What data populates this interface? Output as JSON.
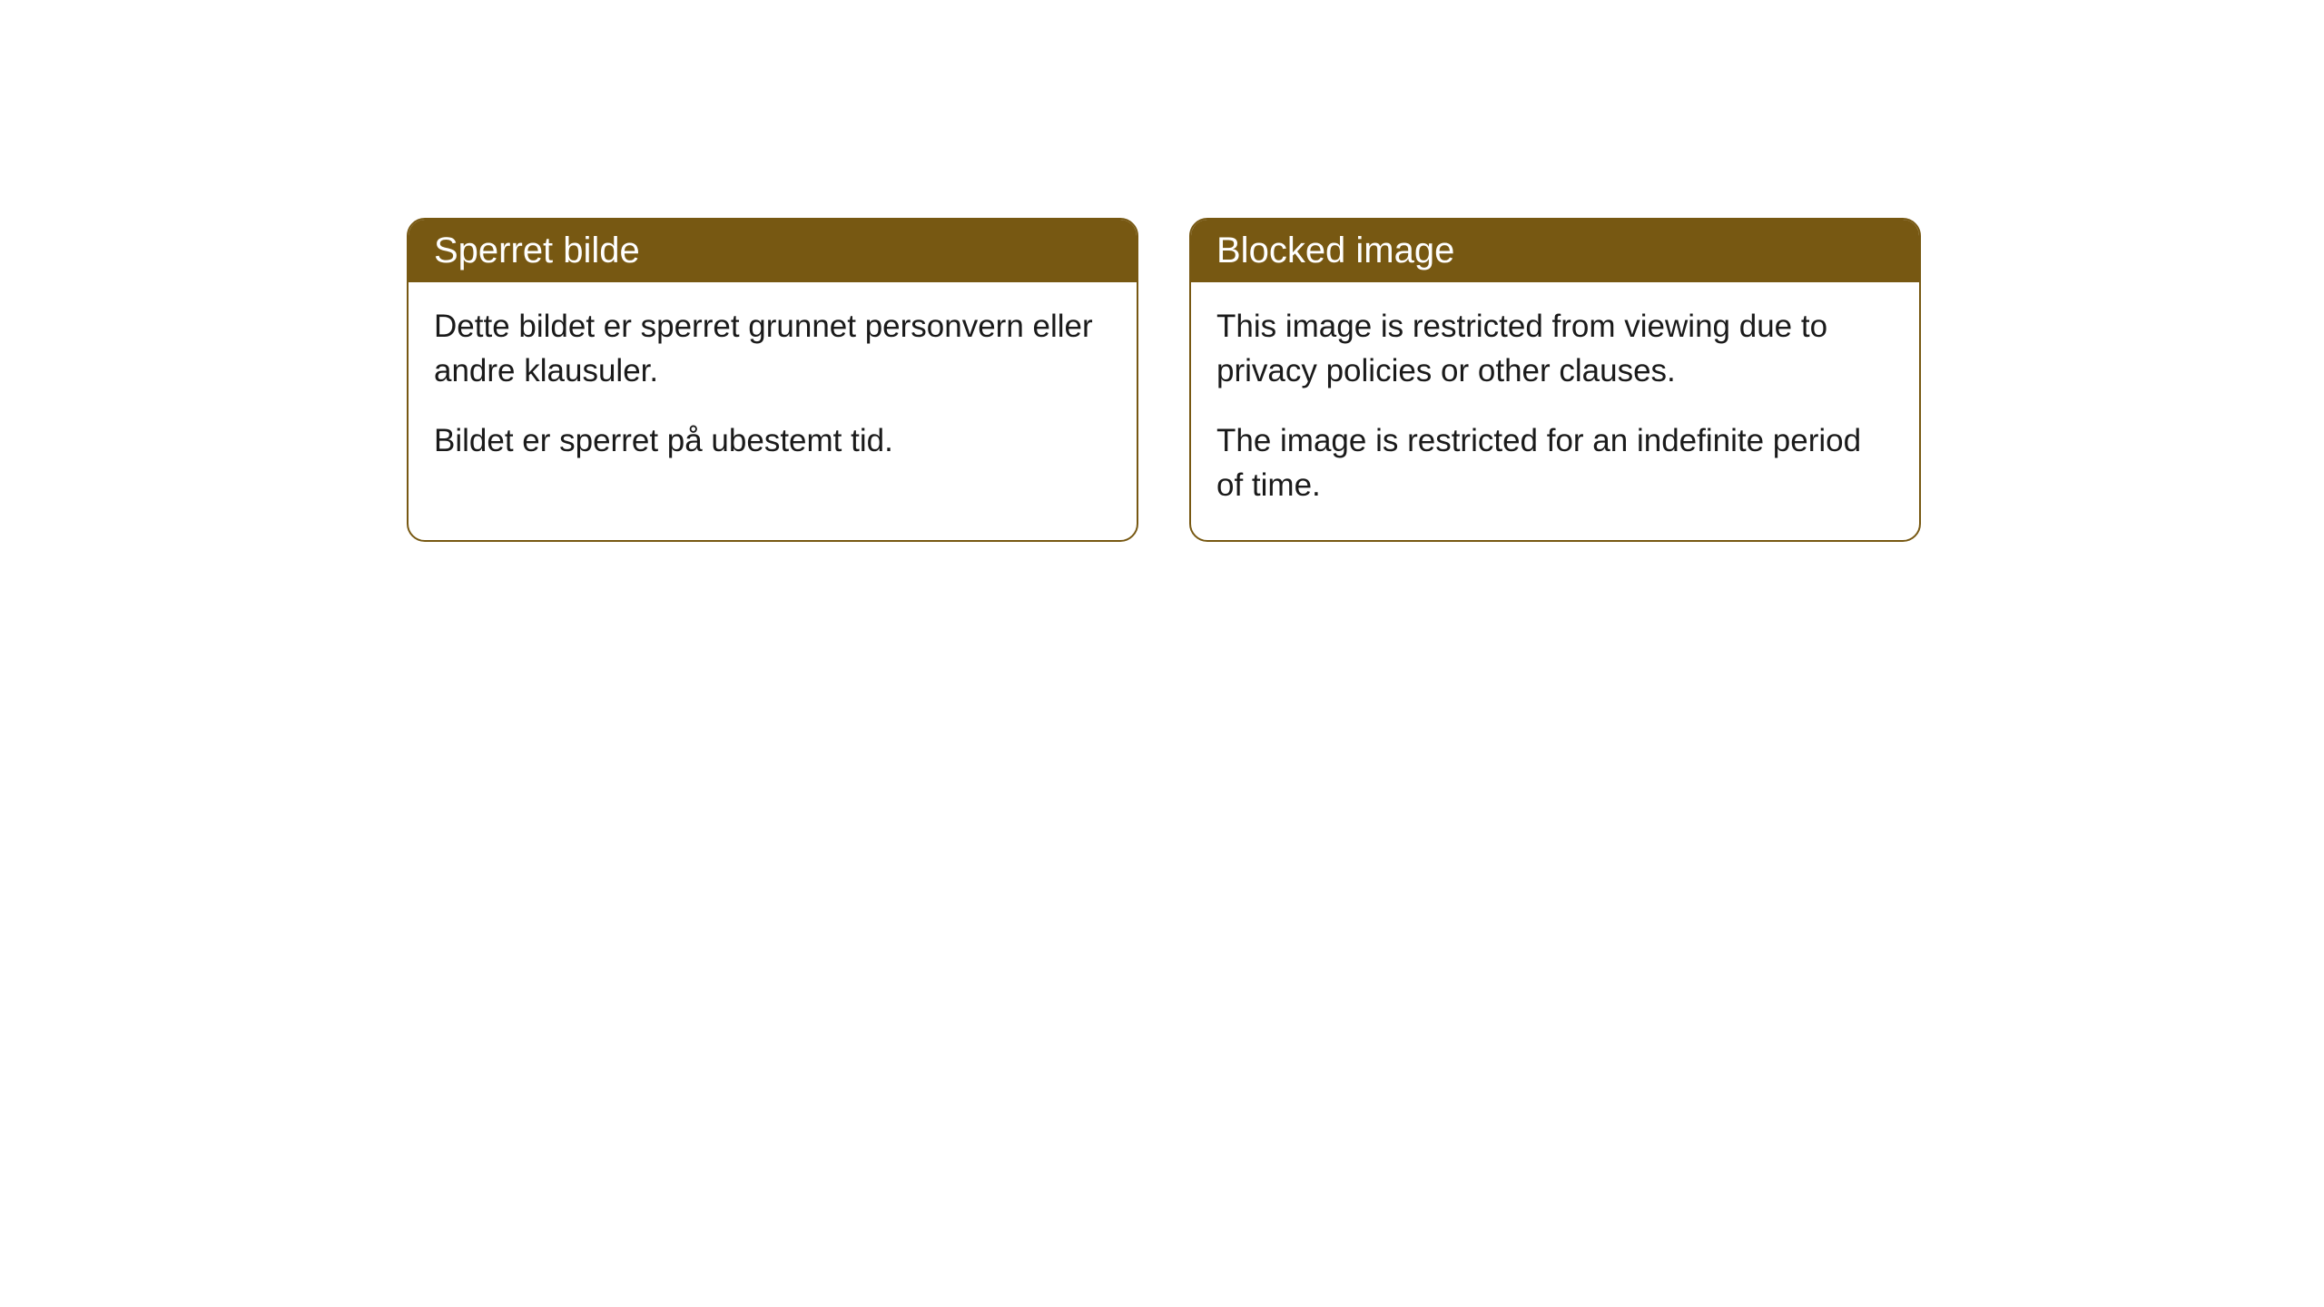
{
  "cards": [
    {
      "title": "Sperret bilde",
      "paragraph1": "Dette bildet er sperret grunnet personvern eller andre klausuler.",
      "paragraph2": "Bildet er sperret på ubestemt tid."
    },
    {
      "title": "Blocked image",
      "paragraph1": "This image is restricted from viewing due to privacy policies or other clauses.",
      "paragraph2": "The image is restricted for an indefinite period of time."
    }
  ],
  "styling": {
    "header_background": "#775812",
    "header_text_color": "#ffffff",
    "border_color": "#775812",
    "body_background": "#ffffff",
    "body_text_color": "#1a1a1a",
    "border_radius": 20,
    "title_fontsize": 40,
    "body_fontsize": 35
  }
}
